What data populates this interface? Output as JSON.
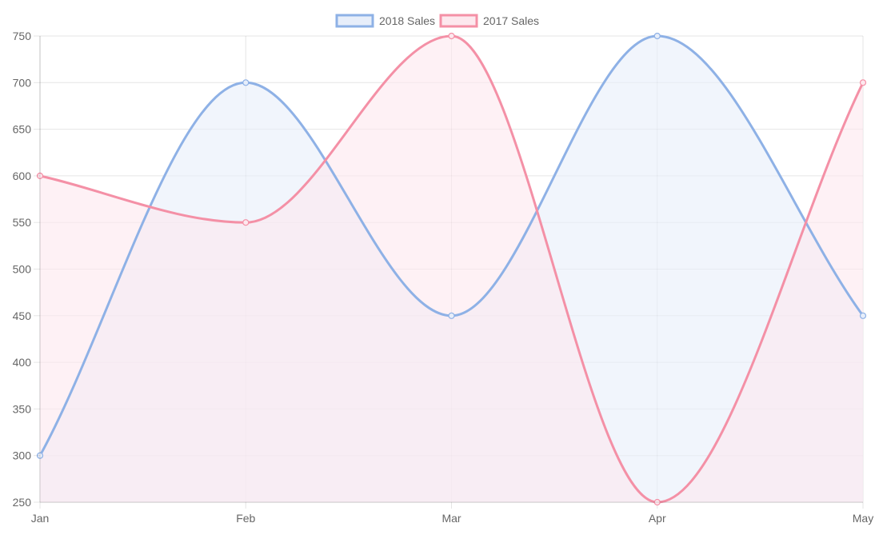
{
  "chart_data": {
    "type": "area",
    "categories": [
      "Jan",
      "Feb",
      "Mar",
      "Apr",
      "May"
    ],
    "series": [
      {
        "name": "2018 Sales",
        "values": [
          300,
          700,
          450,
          750,
          450
        ],
        "color": "#8eb1e6",
        "fill": "#e7eefa"
      },
      {
        "name": "2017 Sales",
        "values": [
          600,
          550,
          750,
          250,
          700
        ],
        "color": "#f490a6",
        "fill": "#fde8ee"
      }
    ],
    "ylim": [
      250,
      750
    ],
    "yticks": [
      250,
      300,
      350,
      400,
      450,
      500,
      550,
      600,
      650,
      700,
      750
    ],
    "legend_position": "top-center",
    "grid": true,
    "curve": "smooth",
    "xlabel": "",
    "ylabel": "",
    "title": ""
  }
}
